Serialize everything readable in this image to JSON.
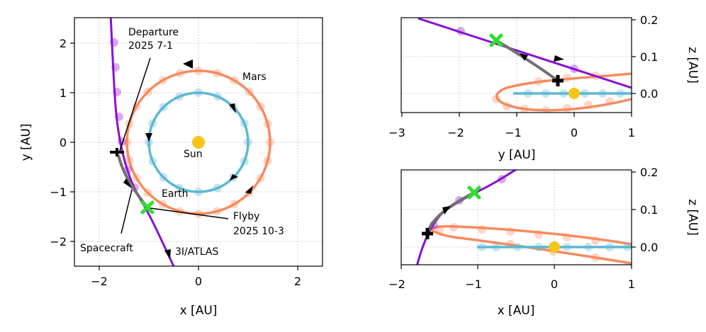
{
  "colors": {
    "earth": "#5bb8d4",
    "mars": "#f88a5e",
    "comet": "#8b0fd1",
    "spacecraft": "#707070",
    "sun": "#f5c518",
    "flyby": "#2ee02e",
    "departure": "#000000"
  },
  "chart_data": [
    {
      "type": "line",
      "view": "top",
      "xlabel": "x [AU]",
      "ylabel": "y [AU]",
      "xlim": [
        -2.5,
        2.5
      ],
      "ylim": [
        -2.5,
        2.5
      ],
      "xticks": [
        -2,
        0,
        2
      ],
      "yticks": [
        -2,
        -1,
        0,
        1,
        2
      ],
      "grid": true,
      "annotations": {
        "departure_line1": "Departure",
        "departure_line2": "2025 7-1",
        "mars": "Mars",
        "sun": "Sun",
        "earth": "Earth",
        "flyby_line1": "Flyby",
        "flyby_line2": "2025 10-3",
        "spacecraft": "Spacecraft",
        "comet": "3I/ATLAS"
      },
      "series": [
        {
          "id": "earth_orbit",
          "radius": 1.0
        },
        {
          "id": "mars_orbit",
          "radius": 1.45
        },
        {
          "id": "comet_path",
          "x": [
            -1.75,
            -1.65,
            -1.55,
            -1.42,
            -1.28,
            -1.12,
            -1.0,
            -0.88,
            -0.76,
            -0.66,
            -0.58
          ],
          "y": [
            2.5,
            2.0,
            1.5,
            0.8,
            0.1,
            -0.75,
            -1.32,
            -1.75,
            -2.1,
            -2.35,
            -2.5
          ]
        },
        {
          "id": "spacecraft_path",
          "x": [
            -1.62,
            -1.55,
            -1.45,
            -1.3,
            -1.15,
            -1.0
          ],
          "y": [
            -0.27,
            -0.6,
            -0.88,
            -1.08,
            -1.22,
            -1.32
          ]
        }
      ],
      "points": {
        "sun": [
          0,
          0
        ],
        "departure": [
          -1.62,
          -0.27
        ],
        "flyby": [
          -1.0,
          -1.32
        ]
      }
    },
    {
      "type": "line",
      "view": "side-yz",
      "xlabel": "y [AU]",
      "ylabel": "z [AU]",
      "xlim": [
        -3,
        1
      ],
      "ylim": [
        -0.05,
        0.2
      ],
      "xticks": [
        -3,
        -2,
        -1,
        0,
        1
      ],
      "yticks": [
        0.0,
        0.1,
        0.2
      ],
      "grid": true,
      "series": [
        {
          "id": "comet_path",
          "x": [
            -2.8,
            -2.2,
            -1.6,
            -1.3,
            -0.8,
            -0.3,
            0.3,
            1.0
          ],
          "y": [
            0.2,
            0.175,
            0.15,
            0.14,
            0.115,
            0.092,
            0.058,
            0.017
          ]
        },
        {
          "id": "spacecraft_path",
          "x": [
            -1.3,
            -1.0,
            -0.7,
            -0.45,
            -0.3
          ],
          "y": [
            0.14,
            0.105,
            0.072,
            0.045,
            0.03
          ]
        }
      ],
      "points": {
        "sun": [
          0,
          0
        ],
        "departure": [
          -0.3,
          0.03
        ],
        "flyby": [
          -1.3,
          0.14
        ]
      }
    },
    {
      "type": "line",
      "view": "side-xz",
      "xlabel": "x [AU]",
      "ylabel": "z [AU]",
      "xlim": [
        -2,
        1
      ],
      "ylim": [
        -0.05,
        0.2
      ],
      "xticks": [
        -2,
        -1,
        0,
        1
      ],
      "yticks": [
        0.0,
        0.1,
        0.2
      ],
      "grid": true,
      "series": [
        {
          "id": "comet_path",
          "x": [
            -1.72,
            -1.6,
            -1.45,
            -1.3,
            -1.1,
            -1.0,
            -0.8,
            -0.6
          ],
          "y": [
            -0.05,
            0.0,
            0.05,
            0.09,
            0.125,
            0.14,
            0.165,
            0.2
          ]
        },
        {
          "id": "spacecraft_path",
          "x": [
            -1.62,
            -1.55,
            -1.4,
            -1.2,
            -1.0
          ],
          "y": [
            0.03,
            0.065,
            0.1,
            0.125,
            0.14
          ]
        }
      ],
      "points": {
        "sun": [
          0,
          0
        ],
        "departure": [
          -1.62,
          0.03
        ],
        "flyby": [
          -1.0,
          0.14
        ]
      }
    }
  ]
}
